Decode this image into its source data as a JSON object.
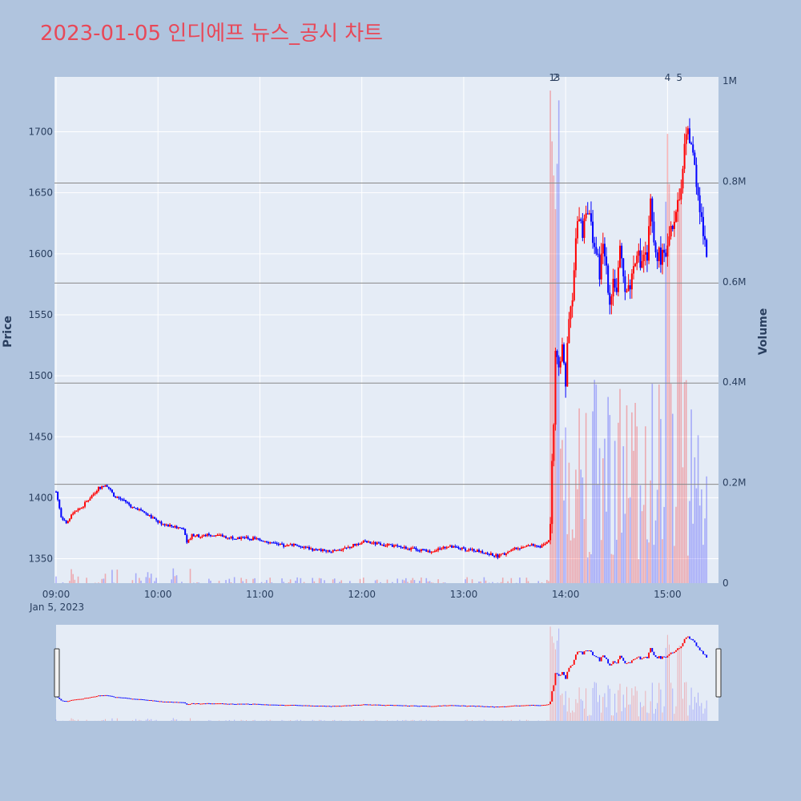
{
  "title": "2023-01-05 인디에프 뉴스_공시 차트",
  "colors": {
    "up": "#ff0000",
    "down": "#0000ff",
    "title": "#e84858",
    "plot_bg": "#e5ecf6",
    "paper_bg": "#b0c4de",
    "grid": "#ffffff",
    "hline": "#888888"
  },
  "chart_data": {
    "type": "candlestick",
    "ylabel": "Price",
    "y2label": "Volume",
    "ylim": [
      1330,
      1745
    ],
    "y2lim": [
      0,
      1000000
    ],
    "y_ticks": [
      1350,
      1400,
      1450,
      1500,
      1550,
      1600,
      1650,
      1700
    ],
    "y_tick_labels": [
      "1350",
      "1400",
      "1450",
      "1500",
      "1550",
      "1600",
      "1650",
      "1700"
    ],
    "y2_ticks": [
      0,
      200000,
      400000,
      600000,
      800000,
      1000000
    ],
    "y2_tick_labels": [
      "0",
      "0.2M",
      "0.4M",
      "0.6M",
      "0.8M",
      "1M"
    ],
    "x_range": [
      "09:00",
      "15:30"
    ],
    "x_ticks": [
      "09:00",
      "10:00",
      "11:00",
      "12:00",
      "13:00",
      "14:00",
      "15:00"
    ],
    "x_date_label": "Jan 5, 2023",
    "hlines": [
      1411,
      1494,
      1576,
      1658
    ],
    "news_markers": [
      {
        "time": "13:52",
        "label": "1"
      },
      {
        "time": "13:54",
        "label": "2"
      },
      {
        "time": "13:55",
        "label": "3"
      },
      {
        "time": "15:00",
        "label": "4"
      },
      {
        "time": "15:07",
        "label": "5"
      }
    ],
    "price_path": [
      [
        "09:00",
        1405
      ],
      [
        "09:03",
        1385
      ],
      [
        "09:06",
        1378
      ],
      [
        "09:10",
        1388
      ],
      [
        "09:15",
        1392
      ],
      [
        "09:20",
        1400
      ],
      [
        "09:25",
        1408
      ],
      [
        "09:30",
        1410
      ],
      [
        "09:35",
        1400
      ],
      [
        "09:40",
        1398
      ],
      [
        "09:45",
        1392
      ],
      [
        "09:50",
        1390
      ],
      [
        "09:55",
        1385
      ],
      [
        "10:00",
        1380
      ],
      [
        "10:05",
        1378
      ],
      [
        "10:10",
        1376
      ],
      [
        "10:15",
        1375
      ],
      [
        "10:17",
        1362
      ],
      [
        "10:20",
        1370
      ],
      [
        "10:25",
        1368
      ],
      [
        "10:30",
        1370
      ],
      [
        "10:40",
        1368
      ],
      [
        "10:50",
        1367
      ],
      [
        "11:00",
        1366
      ],
      [
        "11:05",
        1364
      ],
      [
        "11:15",
        1360
      ],
      [
        "11:20",
        1362
      ],
      [
        "11:30",
        1358
      ],
      [
        "11:40",
        1356
      ],
      [
        "11:50",
        1358
      ],
      [
        "12:00",
        1364
      ],
      [
        "12:10",
        1362
      ],
      [
        "12:20",
        1360
      ],
      [
        "12:30",
        1358
      ],
      [
        "12:40",
        1356
      ],
      [
        "12:50",
        1360
      ],
      [
        "13:00",
        1358
      ],
      [
        "13:10",
        1356
      ],
      [
        "13:15",
        1354
      ],
      [
        "13:20",
        1352
      ],
      [
        "13:30",
        1358
      ],
      [
        "13:40",
        1362
      ],
      [
        "13:45",
        1360
      ],
      [
        "13:50",
        1365
      ],
      [
        "13:51",
        1380
      ],
      [
        "13:52",
        1430
      ],
      [
        "13:53",
        1460
      ],
      [
        "13:54",
        1520
      ],
      [
        "13:56",
        1500
      ],
      [
        "13:58",
        1530
      ],
      [
        "14:00",
        1495
      ],
      [
        "14:02",
        1545
      ],
      [
        "14:04",
        1560
      ],
      [
        "14:06",
        1610
      ],
      [
        "14:08",
        1635
      ],
      [
        "14:10",
        1618
      ],
      [
        "14:12",
        1640
      ],
      [
        "14:14",
        1630
      ],
      [
        "14:16",
        1615
      ],
      [
        "14:18",
        1600
      ],
      [
        "14:20",
        1585
      ],
      [
        "14:22",
        1605
      ],
      [
        "14:24",
        1590
      ],
      [
        "14:26",
        1560
      ],
      [
        "14:28",
        1580
      ],
      [
        "14:30",
        1570
      ],
      [
        "14:32",
        1600
      ],
      [
        "14:34",
        1580
      ],
      [
        "14:36",
        1570
      ],
      [
        "14:38",
        1575
      ],
      [
        "14:40",
        1590
      ],
      [
        "14:42",
        1605
      ],
      [
        "14:44",
        1590
      ],
      [
        "14:46",
        1600
      ],
      [
        "14:48",
        1595
      ],
      [
        "14:50",
        1640
      ],
      [
        "14:52",
        1605
      ],
      [
        "14:54",
        1600
      ],
      [
        "14:56",
        1598
      ],
      [
        "14:58",
        1595
      ],
      [
        "15:00",
        1605
      ],
      [
        "15:02",
        1620
      ],
      [
        "15:04",
        1630
      ],
      [
        "15:06",
        1640
      ],
      [
        "15:08",
        1650
      ],
      [
        "15:10",
        1685
      ],
      [
        "15:12",
        1700
      ],
      [
        "15:14",
        1690
      ],
      [
        "15:16",
        1670
      ],
      [
        "15:18",
        1650
      ],
      [
        "15:20",
        1630
      ],
      [
        "15:22",
        1605
      ],
      [
        "15:23",
        1600
      ]
    ]
  }
}
